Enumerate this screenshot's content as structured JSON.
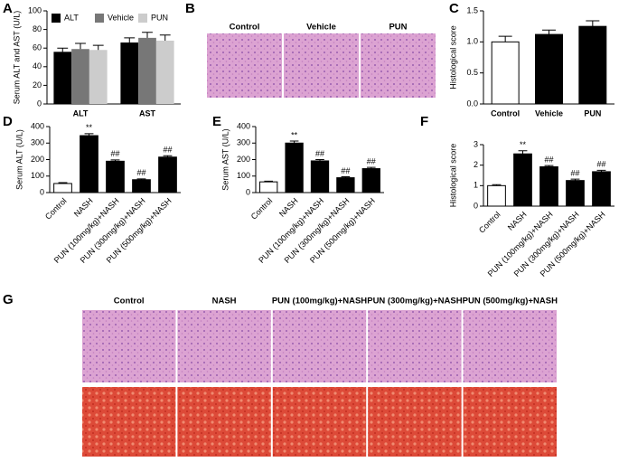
{
  "chart_data": [
    {
      "type": "bar",
      "label": "A",
      "ylabel": "Serum ALT and AST (U/L)",
      "categories": [
        "ALT",
        "AST"
      ],
      "series": [
        {
          "name": "ALT",
          "color": "#000000",
          "values": [
            56,
            66
          ],
          "errors": [
            4,
            5
          ]
        },
        {
          "name": "Vehicle",
          "color": "#777777",
          "values": [
            59,
            71
          ],
          "errors": [
            6,
            6
          ]
        },
        {
          "name": "PUN",
          "color": "#cccccc",
          "values": [
            58,
            68
          ],
          "errors": [
            5,
            6
          ]
        }
      ],
      "ylim": [
        0,
        100
      ],
      "yticks": [
        0,
        20,
        40,
        60,
        80,
        100
      ],
      "legend": "top-left"
    },
    {
      "type": "bar",
      "label": "C",
      "ylabel": "Histological score",
      "categories": [
        "Control",
        "Vehicle",
        "PUN"
      ],
      "values": [
        1.0,
        1.12,
        1.25
      ],
      "errors": [
        0.09,
        0.07,
        0.09
      ],
      "colors": [
        "#ffffff",
        "#000000",
        "#000000"
      ],
      "ylim": [
        0,
        1.5
      ],
      "yticks": [
        {
          "value": 0,
          "label": "0.0"
        },
        0.5,
        {
          "value": 1,
          "label": "1.0"
        },
        1.5
      ]
    },
    {
      "type": "bar",
      "label": "D",
      "ylabel": "Serum ALT (U/L)",
      "categories": [
        "Control",
        "NASH",
        "PUN (100mg/kg)+NASH",
        "PUN (300mg/kg)+NASH",
        "PUN (500mg/kg)+NASH"
      ],
      "values": [
        55,
        345,
        190,
        78,
        215
      ],
      "errors": [
        5,
        12,
        8,
        5,
        8
      ],
      "colors": [
        "#ffffff",
        "#000000",
        "#000000",
        "#000000",
        "#000000"
      ],
      "annotations": [
        null,
        "**",
        "##",
        "##",
        "##"
      ],
      "ylim": [
        0,
        400
      ],
      "yticks": [
        0,
        100,
        200,
        300,
        400
      ]
    },
    {
      "type": "bar",
      "label": "E",
      "ylabel": "Serum AST (U/L)",
      "categories": [
        "Control",
        "NASH",
        "PUN (100mg/kg)+NASH",
        "PUN (300mg/kg)+NASH",
        "PUN (500mg/kg)+NASH"
      ],
      "values": [
        65,
        300,
        192,
        90,
        145
      ],
      "errors": [
        4,
        12,
        8,
        6,
        8
      ],
      "colors": [
        "#ffffff",
        "#000000",
        "#000000",
        "#000000",
        "#000000"
      ],
      "annotations": [
        null,
        "**",
        "##",
        "##",
        "##"
      ],
      "ylim": [
        0,
        400
      ],
      "yticks": [
        0,
        100,
        200,
        300,
        400
      ]
    },
    {
      "type": "bar",
      "label": "F",
      "ylabel": "Histological score",
      "categories": [
        "Control",
        "NASH",
        "PUN (100mg/kg)+NASH",
        "PUN (300mg/kg)+NASH",
        "PUN (500mg/kg)+NASH"
      ],
      "values": [
        1.0,
        2.55,
        1.92,
        1.25,
        1.68
      ],
      "errors": [
        0.05,
        0.15,
        0.06,
        0.07,
        0.07
      ],
      "colors": [
        "#ffffff",
        "#000000",
        "#000000",
        "#000000",
        "#000000"
      ],
      "annotations": [
        null,
        "**",
        "##",
        "##",
        "##"
      ],
      "ylim": [
        0,
        3
      ],
      "yticks": [
        0,
        1,
        2,
        3
      ]
    }
  ],
  "images": [
    {
      "label": "B",
      "captions": [
        "Control",
        "Vehicle",
        "PUN"
      ]
    },
    {
      "label": "G",
      "captions": [
        "Control",
        "NASH",
        "PUN (100mg/kg)+NASH",
        "PUN (300mg/kg)+NASH",
        "PUN (500mg/kg)+NASH"
      ]
    }
  ]
}
